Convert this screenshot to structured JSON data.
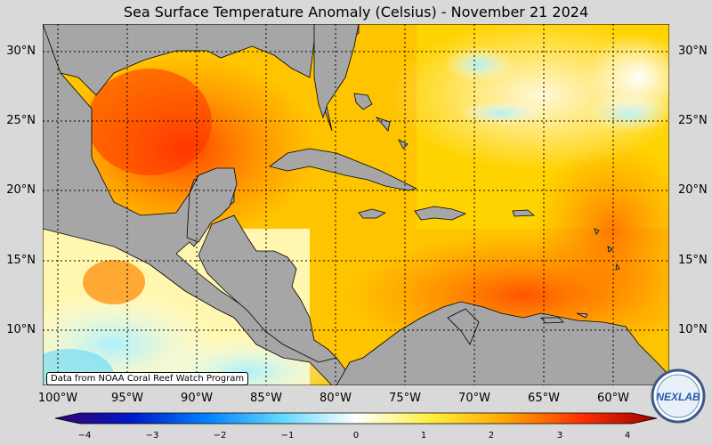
{
  "title": "Sea Surface Temperature Anomaly (Celsius) - November 21 2024",
  "credit": "Data from NOAA Coral Reef Watch Program",
  "lat_labels": [
    "30°N",
    "25°N",
    "20°N",
    "15°N",
    "10°N"
  ],
  "lon_labels": [
    "100°W",
    "95°W",
    "90°W",
    "85°W",
    "80°W",
    "75°W",
    "70°W",
    "65°W",
    "60°W"
  ],
  "colorbar": {
    "ticks": [
      "−4",
      "−3",
      "−2",
      "−1",
      "0",
      "1",
      "2",
      "3",
      "4"
    ],
    "colors": [
      "#3a0070",
      "#0018c8",
      "#0080ff",
      "#5fd8ff",
      "#ffffff",
      "#ffef3a",
      "#ffa500",
      "#ff3000",
      "#9a0000"
    ]
  },
  "logo_text": "NEXLAB",
  "colors": {
    "land": "#a6a6a6",
    "background": "#d9d9d9"
  }
}
